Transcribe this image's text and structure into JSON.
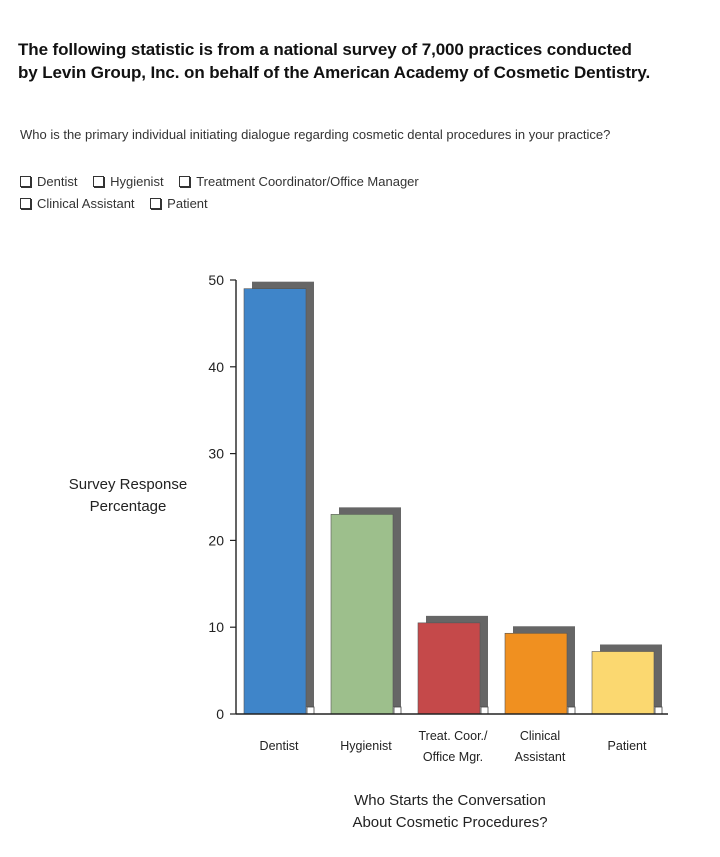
{
  "header": {
    "line1": "The following statistic is from a national survey of 7,000 practices conducted",
    "line2": "by Levin Group, Inc. on behalf of the American Academy of Cosmetic Dentistry."
  },
  "question": {
    "text": "Who is the primary individual initiating dialogue regarding cosmetic dental procedures in your practice?",
    "options_row1": [
      "Dentist",
      "Hygienist",
      "Treatment Coordinator/Office Manager"
    ],
    "options_row2": [
      "Clinical Assistant",
      "Patient"
    ]
  },
  "chart_data": {
    "type": "bar",
    "categories": [
      [
        "Dentist"
      ],
      [
        "Hygienist"
      ],
      [
        "Treat. Coor./",
        "Office Mgr."
      ],
      [
        "Clinical",
        "Assistant"
      ],
      [
        "Patient"
      ]
    ],
    "values": [
      49,
      23,
      10.5,
      9.3,
      7.2
    ],
    "colors": [
      "#3f85c9",
      "#9dbf8c",
      "#c5494a",
      "#f09020",
      "#fbd870"
    ],
    "shadow_color": "#666666",
    "ylabel": [
      "Survey Response",
      "Percentage"
    ],
    "xlabel": [
      "Who Starts the Conversation",
      "About Cosmetic Procedures?"
    ],
    "ylim": [
      0,
      50
    ],
    "yticks": [
      0,
      10,
      20,
      30,
      40,
      50
    ],
    "grid": false
  }
}
